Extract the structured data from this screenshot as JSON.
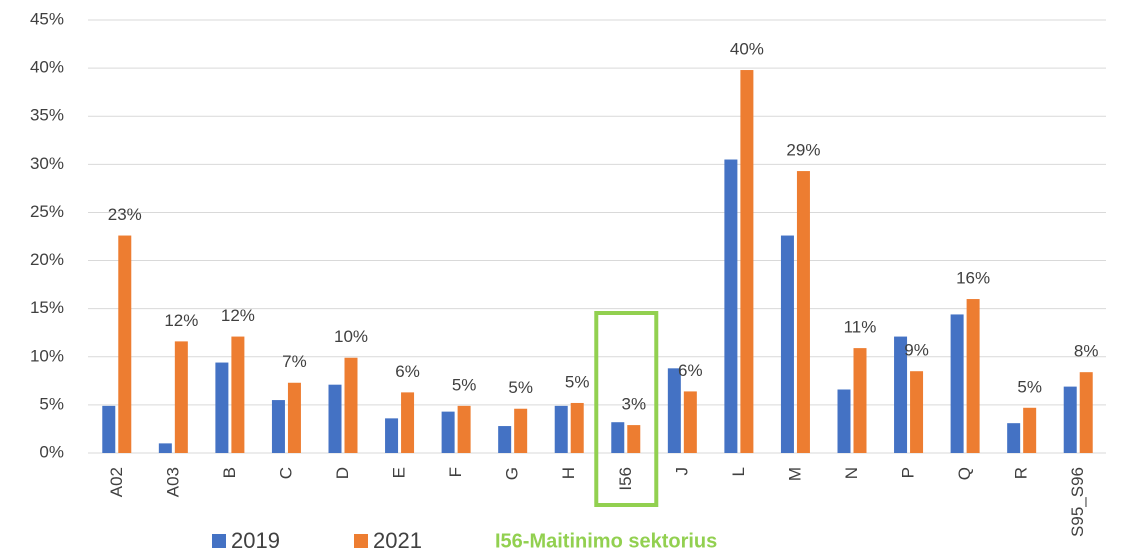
{
  "chart_data": {
    "type": "bar",
    "categories": [
      "A02",
      "A03",
      "B",
      "C",
      "D",
      "E",
      "F",
      "G",
      "H",
      "I56",
      "J",
      "L",
      "M",
      "N",
      "P",
      "Q",
      "R",
      "S95_S96"
    ],
    "series": [
      {
        "name": "2019",
        "color": "#4472c4",
        "values": [
          4.9,
          1.0,
          9.4,
          5.5,
          7.1,
          3.6,
          4.3,
          2.8,
          4.9,
          3.2,
          8.8,
          30.5,
          22.6,
          6.6,
          12.1,
          14.4,
          3.1,
          6.9
        ]
      },
      {
        "name": "2021",
        "color": "#ed7d31",
        "values": [
          22.6,
          11.6,
          12.1,
          7.3,
          9.9,
          6.3,
          4.9,
          4.6,
          5.2,
          2.9,
          6.4,
          39.8,
          29.3,
          10.9,
          8.5,
          16.0,
          4.7,
          8.4
        ],
        "value_labels": [
          "23%",
          "12%",
          "12%",
          "7%",
          "10%",
          "6%",
          "5%",
          "5%",
          "5%",
          "3%",
          "6%",
          "40%",
          "29%",
          "11%",
          "9%",
          "16%",
          "5%",
          "8%"
        ]
      }
    ],
    "ylim": [
      0,
      45
    ],
    "yticks": [
      {
        "value": 0,
        "label": "0%"
      },
      {
        "value": 5,
        "label": "5%"
      },
      {
        "value": 10,
        "label": "10%"
      },
      {
        "value": 15,
        "label": "15%"
      },
      {
        "value": 20,
        "label": "20%"
      },
      {
        "value": 25,
        "label": "25%"
      },
      {
        "value": 30,
        "label": "30%"
      },
      {
        "value": 35,
        "label": "35%"
      },
      {
        "value": 40,
        "label": "40%"
      },
      {
        "value": 45,
        "label": "45%"
      }
    ],
    "grid": true,
    "annotation": "I56-Maitinimo sektorius",
    "annotation_color": "#92d050"
  }
}
